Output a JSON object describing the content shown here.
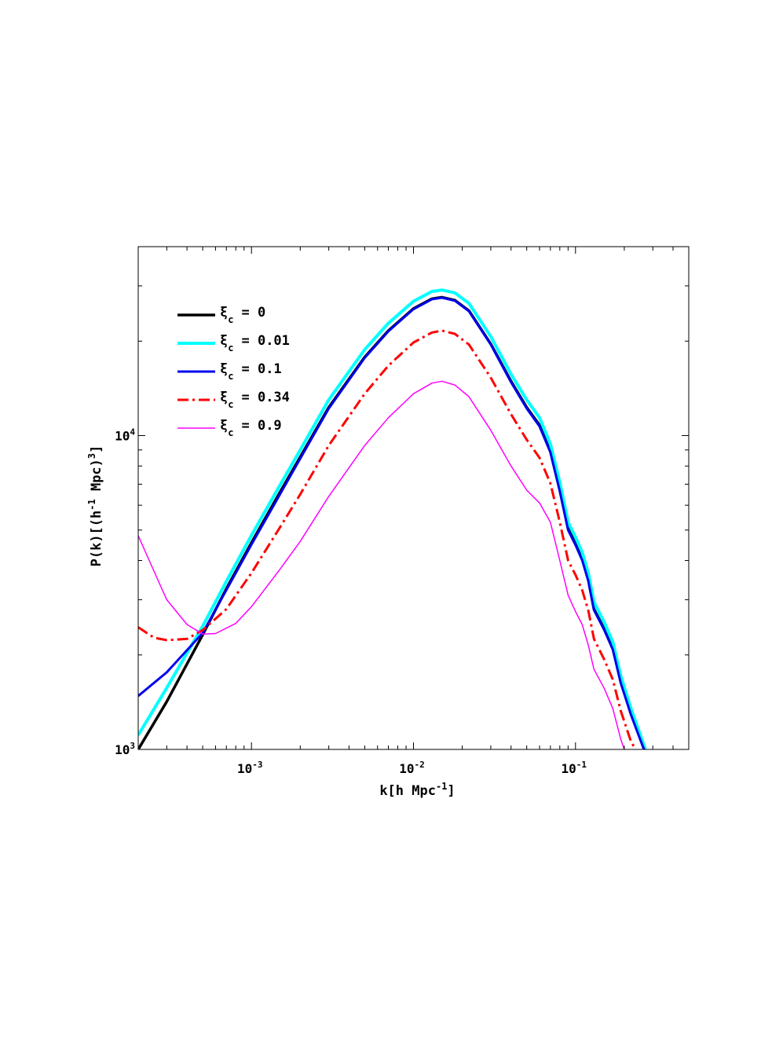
{
  "chart_data": {
    "type": "line",
    "title": "",
    "x_scale": "log",
    "y_scale": "log",
    "xlim": [
      0.0002,
      0.5
    ],
    "ylim": [
      1000,
      40000
    ],
    "xlabel": {
      "base": "k[h Mpc",
      "sup": "-1",
      "tail": "]"
    },
    "ylabel": {
      "p1": "P(k)[(h",
      "sup1": "-1",
      "p2": " Mpc)",
      "sup2": "3",
      "p3": "]"
    },
    "x_ticks": [
      {
        "value": 0.001,
        "base": "10",
        "exp": "-3"
      },
      {
        "value": 0.01,
        "base": "10",
        "exp": "-2"
      },
      {
        "value": 0.1,
        "base": "10",
        "exp": "-1"
      }
    ],
    "y_ticks": [
      {
        "value": 1000,
        "base": "10",
        "exp": "3"
      },
      {
        "value": 10000,
        "base": "10",
        "exp": "4"
      }
    ],
    "legend_position": "top-left",
    "series": [
      {
        "name_sym": "ξ",
        "name_sub": "c",
        "name_val": "= 0",
        "color": "#000000",
        "dash": "solid",
        "width": 3.5,
        "points": [
          [
            0.0002,
            1000
          ],
          [
            0.0003,
            1420
          ],
          [
            0.0005,
            2320
          ],
          [
            0.0007,
            3250
          ],
          [
            0.001,
            4560
          ],
          [
            0.0015,
            6600
          ],
          [
            0.002,
            8550
          ],
          [
            0.003,
            12300
          ],
          [
            0.005,
            17800
          ],
          [
            0.007,
            21600
          ],
          [
            0.01,
            25400
          ],
          [
            0.013,
            27300
          ],
          [
            0.015,
            27600
          ],
          [
            0.018,
            27000
          ],
          [
            0.022,
            25000
          ],
          [
            0.03,
            19600
          ],
          [
            0.04,
            14900
          ],
          [
            0.05,
            12300
          ],
          [
            0.06,
            10800
          ],
          [
            0.07,
            8900
          ],
          [
            0.08,
            6700
          ],
          [
            0.09,
            5050
          ],
          [
            0.1,
            4520
          ],
          [
            0.11,
            4050
          ],
          [
            0.12,
            3470
          ],
          [
            0.13,
            2800
          ],
          [
            0.15,
            2430
          ],
          [
            0.17,
            2100
          ],
          [
            0.19,
            1650
          ],
          [
            0.22,
            1300
          ],
          [
            0.25,
            1090
          ],
          [
            0.265,
            1000
          ]
        ]
      },
      {
        "name_sym": "ξ",
        "name_sub": "c",
        "name_val": "= 0.01",
        "color": "#00ffff",
        "dash": "solid",
        "width": 4,
        "points": [
          [
            0.0002,
            1110
          ],
          [
            0.0003,
            1570
          ],
          [
            0.0005,
            2470
          ],
          [
            0.0007,
            3430
          ],
          [
            0.001,
            4810
          ],
          [
            0.0015,
            6950
          ],
          [
            0.002,
            9000
          ],
          [
            0.003,
            13000
          ],
          [
            0.005,
            18800
          ],
          [
            0.007,
            22800
          ],
          [
            0.01,
            26800
          ],
          [
            0.013,
            28800
          ],
          [
            0.015,
            29100
          ],
          [
            0.018,
            28500
          ],
          [
            0.022,
            26400
          ],
          [
            0.03,
            20700
          ],
          [
            0.04,
            15700
          ],
          [
            0.05,
            13000
          ],
          [
            0.06,
            11400
          ],
          [
            0.07,
            9400
          ],
          [
            0.08,
            7100
          ],
          [
            0.09,
            5300
          ],
          [
            0.1,
            4750
          ],
          [
            0.11,
            4250
          ],
          [
            0.12,
            3650
          ],
          [
            0.13,
            2950
          ],
          [
            0.15,
            2550
          ],
          [
            0.17,
            2200
          ],
          [
            0.19,
            1720
          ],
          [
            0.22,
            1350
          ],
          [
            0.25,
            1120
          ],
          [
            0.27,
            1000
          ]
        ]
      },
      {
        "name_sym": "ξ",
        "name_sub": "c",
        "name_val": "= 0.1",
        "color": "#0000ee",
        "dash": "solid",
        "width": 3,
        "points": [
          [
            0.0002,
            1480
          ],
          [
            0.0003,
            1760
          ],
          [
            0.0005,
            2350
          ],
          [
            0.0007,
            3220
          ],
          [
            0.001,
            4500
          ],
          [
            0.0015,
            6500
          ],
          [
            0.002,
            8450
          ],
          [
            0.003,
            12200
          ],
          [
            0.005,
            17700
          ],
          [
            0.007,
            21500
          ],
          [
            0.01,
            25300
          ],
          [
            0.013,
            27200
          ],
          [
            0.015,
            27500
          ],
          [
            0.018,
            26900
          ],
          [
            0.022,
            24900
          ],
          [
            0.03,
            19500
          ],
          [
            0.04,
            14800
          ],
          [
            0.05,
            12200
          ],
          [
            0.06,
            10700
          ],
          [
            0.07,
            8850
          ],
          [
            0.08,
            6650
          ],
          [
            0.09,
            5000
          ],
          [
            0.1,
            4480
          ],
          [
            0.11,
            4010
          ],
          [
            0.12,
            3440
          ],
          [
            0.13,
            2780
          ],
          [
            0.15,
            2410
          ],
          [
            0.17,
            2080
          ],
          [
            0.19,
            1630
          ],
          [
            0.22,
            1290
          ],
          [
            0.25,
            1080
          ],
          [
            0.265,
            1000
          ]
        ]
      },
      {
        "name_sym": "ξ",
        "name_sub": "c",
        "name_val": "= 0.34",
        "color": "#ff0000",
        "dash": "dashdot",
        "width": 3,
        "points": [
          [
            0.0002,
            2450
          ],
          [
            0.00025,
            2270
          ],
          [
            0.0003,
            2230
          ],
          [
            0.0004,
            2250
          ],
          [
            0.0005,
            2400
          ],
          [
            0.0007,
            2800
          ],
          [
            0.001,
            3650
          ],
          [
            0.0015,
            5100
          ],
          [
            0.002,
            6500
          ],
          [
            0.003,
            9300
          ],
          [
            0.005,
            13600
          ],
          [
            0.007,
            16700
          ],
          [
            0.01,
            19800
          ],
          [
            0.013,
            21300
          ],
          [
            0.015,
            21600
          ],
          [
            0.018,
            21100
          ],
          [
            0.022,
            19500
          ],
          [
            0.03,
            15300
          ],
          [
            0.04,
            11700
          ],
          [
            0.05,
            9700
          ],
          [
            0.06,
            8500
          ],
          [
            0.07,
            7050
          ],
          [
            0.08,
            5300
          ],
          [
            0.09,
            4000
          ],
          [
            0.1,
            3600
          ],
          [
            0.11,
            3220
          ],
          [
            0.12,
            2770
          ],
          [
            0.13,
            2250
          ],
          [
            0.15,
            1940
          ],
          [
            0.17,
            1670
          ],
          [
            0.19,
            1330
          ],
          [
            0.22,
            1060
          ],
          [
            0.235,
            1000
          ]
        ]
      },
      {
        "name_sym": "ξ",
        "name_sub": "c",
        "name_val": "= 0.9",
        "color": "#ff00ff",
        "dash": "solid",
        "width": 1.5,
        "points": [
          [
            0.0002,
            4800
          ],
          [
            0.00025,
            3700
          ],
          [
            0.0003,
            3000
          ],
          [
            0.0004,
            2500
          ],
          [
            0.0005,
            2330
          ],
          [
            0.0006,
            2340
          ],
          [
            0.0008,
            2520
          ],
          [
            0.001,
            2850
          ],
          [
            0.0015,
            3750
          ],
          [
            0.002,
            4600
          ],
          [
            0.003,
            6400
          ],
          [
            0.005,
            9300
          ],
          [
            0.007,
            11400
          ],
          [
            0.01,
            13600
          ],
          [
            0.013,
            14700
          ],
          [
            0.015,
            14900
          ],
          [
            0.018,
            14500
          ],
          [
            0.022,
            13300
          ],
          [
            0.03,
            10400
          ],
          [
            0.04,
            8000
          ],
          [
            0.05,
            6700
          ],
          [
            0.06,
            6100
          ],
          [
            0.07,
            5300
          ],
          [
            0.08,
            4000
          ],
          [
            0.09,
            3100
          ],
          [
            0.1,
            2750
          ],
          [
            0.11,
            2500
          ],
          [
            0.12,
            2150
          ],
          [
            0.13,
            1800
          ],
          [
            0.15,
            1570
          ],
          [
            0.17,
            1350
          ],
          [
            0.19,
            1080
          ],
          [
            0.2,
            1000
          ]
        ]
      }
    ]
  }
}
